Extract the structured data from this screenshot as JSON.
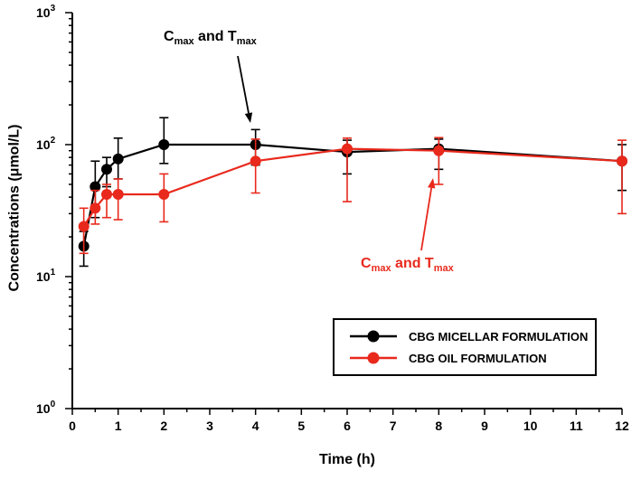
{
  "chart_data": {
    "type": "line",
    "title": "",
    "xlabel": "Time (h)",
    "ylabel": "Concentrations (μmol/L)",
    "x_ticks": [
      0,
      1,
      2,
      3,
      4,
      5,
      6,
      7,
      8,
      9,
      10,
      11,
      12
    ],
    "xlim": [
      0,
      12
    ],
    "y_scale": "log10",
    "y_tick_exponents": [
      0,
      1,
      2,
      3
    ],
    "ylim": [
      1,
      1000
    ],
    "grid": false,
    "legend_position": "lower-right",
    "series": [
      {
        "name": "CBG MICELLAR FORMULATION",
        "color": "#000000",
        "points": [
          {
            "t": 0.25,
            "v": 17,
            "lo": 12,
            "hi": 22
          },
          {
            "t": 0.5,
            "v": 48,
            "lo": 28,
            "hi": 75
          },
          {
            "t": 0.75,
            "v": 65,
            "lo": 48,
            "hi": 80
          },
          {
            "t": 1,
            "v": 78,
            "lo": 55,
            "hi": 112
          },
          {
            "t": 2,
            "v": 100,
            "lo": 72,
            "hi": 160
          },
          {
            "t": 4,
            "v": 100,
            "lo": 70,
            "hi": 130
          },
          {
            "t": 6,
            "v": 88,
            "lo": 60,
            "hi": 108
          },
          {
            "t": 8,
            "v": 93,
            "lo": 65,
            "hi": 110
          },
          {
            "t": 12,
            "v": 75,
            "lo": 45,
            "hi": 100
          }
        ]
      },
      {
        "name": "CBG OIL FORMULATION",
        "color": "#e8291c",
        "points": [
          {
            "t": 0.25,
            "v": 24,
            "lo": 15,
            "hi": 33
          },
          {
            "t": 0.5,
            "v": 33,
            "lo": 25,
            "hi": 45
          },
          {
            "t": 0.75,
            "v": 42,
            "lo": 28,
            "hi": 50
          },
          {
            "t": 1,
            "v": 42,
            "lo": 27,
            "hi": 55
          },
          {
            "t": 2,
            "v": 42,
            "lo": 26,
            "hi": 60
          },
          {
            "t": 4,
            "v": 75,
            "lo": 43,
            "hi": 110
          },
          {
            "t": 6,
            "v": 93,
            "lo": 37,
            "hi": 112
          },
          {
            "t": 8,
            "v": 90,
            "lo": 50,
            "hi": 113
          },
          {
            "t": 12,
            "v": 75,
            "lo": 30,
            "hi": 108
          }
        ]
      }
    ],
    "annotations": [
      {
        "parts": [
          "C",
          "max",
          " and T",
          "max"
        ],
        "color": "#000000",
        "target": {
          "series": "CBG MICELLAR FORMULATION",
          "t": 4
        },
        "arrow": {
          "from": [
            263,
            62
          ],
          "to": [
            277,
            136
          ]
        }
      },
      {
        "parts": [
          "C",
          "max",
          " and T",
          "max"
        ],
        "color": "#e8291c",
        "target": {
          "series": "CBG OIL FORMULATION",
          "t": 8
        },
        "arrow": {
          "from": [
            466,
            277
          ],
          "to": [
            479,
            197
          ]
        }
      }
    ]
  }
}
